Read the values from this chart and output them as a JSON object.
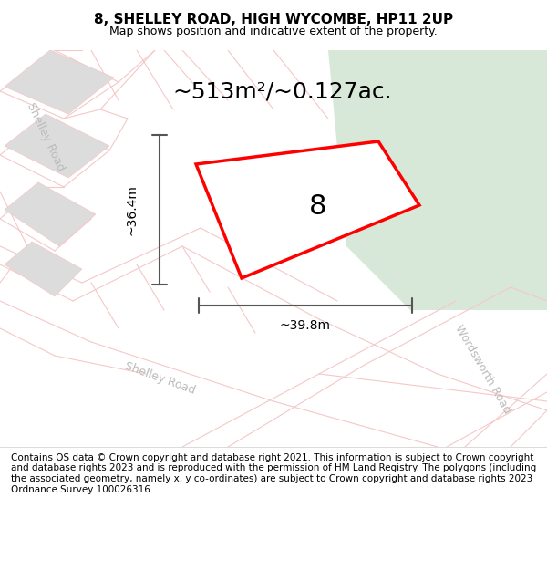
{
  "title_line1": "8, SHELLEY ROAD, HIGH WYCOMBE, HP11 2UP",
  "title_line2": "Map shows position and indicative extent of the property.",
  "area_label": "~513m²/~0.127ac.",
  "width_label": "~39.8m",
  "height_label": "~36.4m",
  "plot_number": "8",
  "footnote": "Contains OS data © Crown copyright and database right 2021. This information is subject to Crown copyright and database rights 2023 and is reproduced with the permission of HM Land Registry. The polygons (including the associated geometry, namely x, y co-ordinates) are subject to Crown copyright and database rights 2023 Ordnance Survey 100026316.",
  "bg_color": "#f0eeee",
  "map_bg": "#e8e6e6",
  "plot_fill": "#f5f5f5",
  "plot_edge_color": "#ff0000",
  "road_color": "#f5c8c8",
  "dim_color": "#555555",
  "road_label_color": "#aaaaaa",
  "green_area": "#d8e8d8",
  "title_fontsize": 11,
  "subtitle_fontsize": 9,
  "footnote_fontsize": 7.5
}
